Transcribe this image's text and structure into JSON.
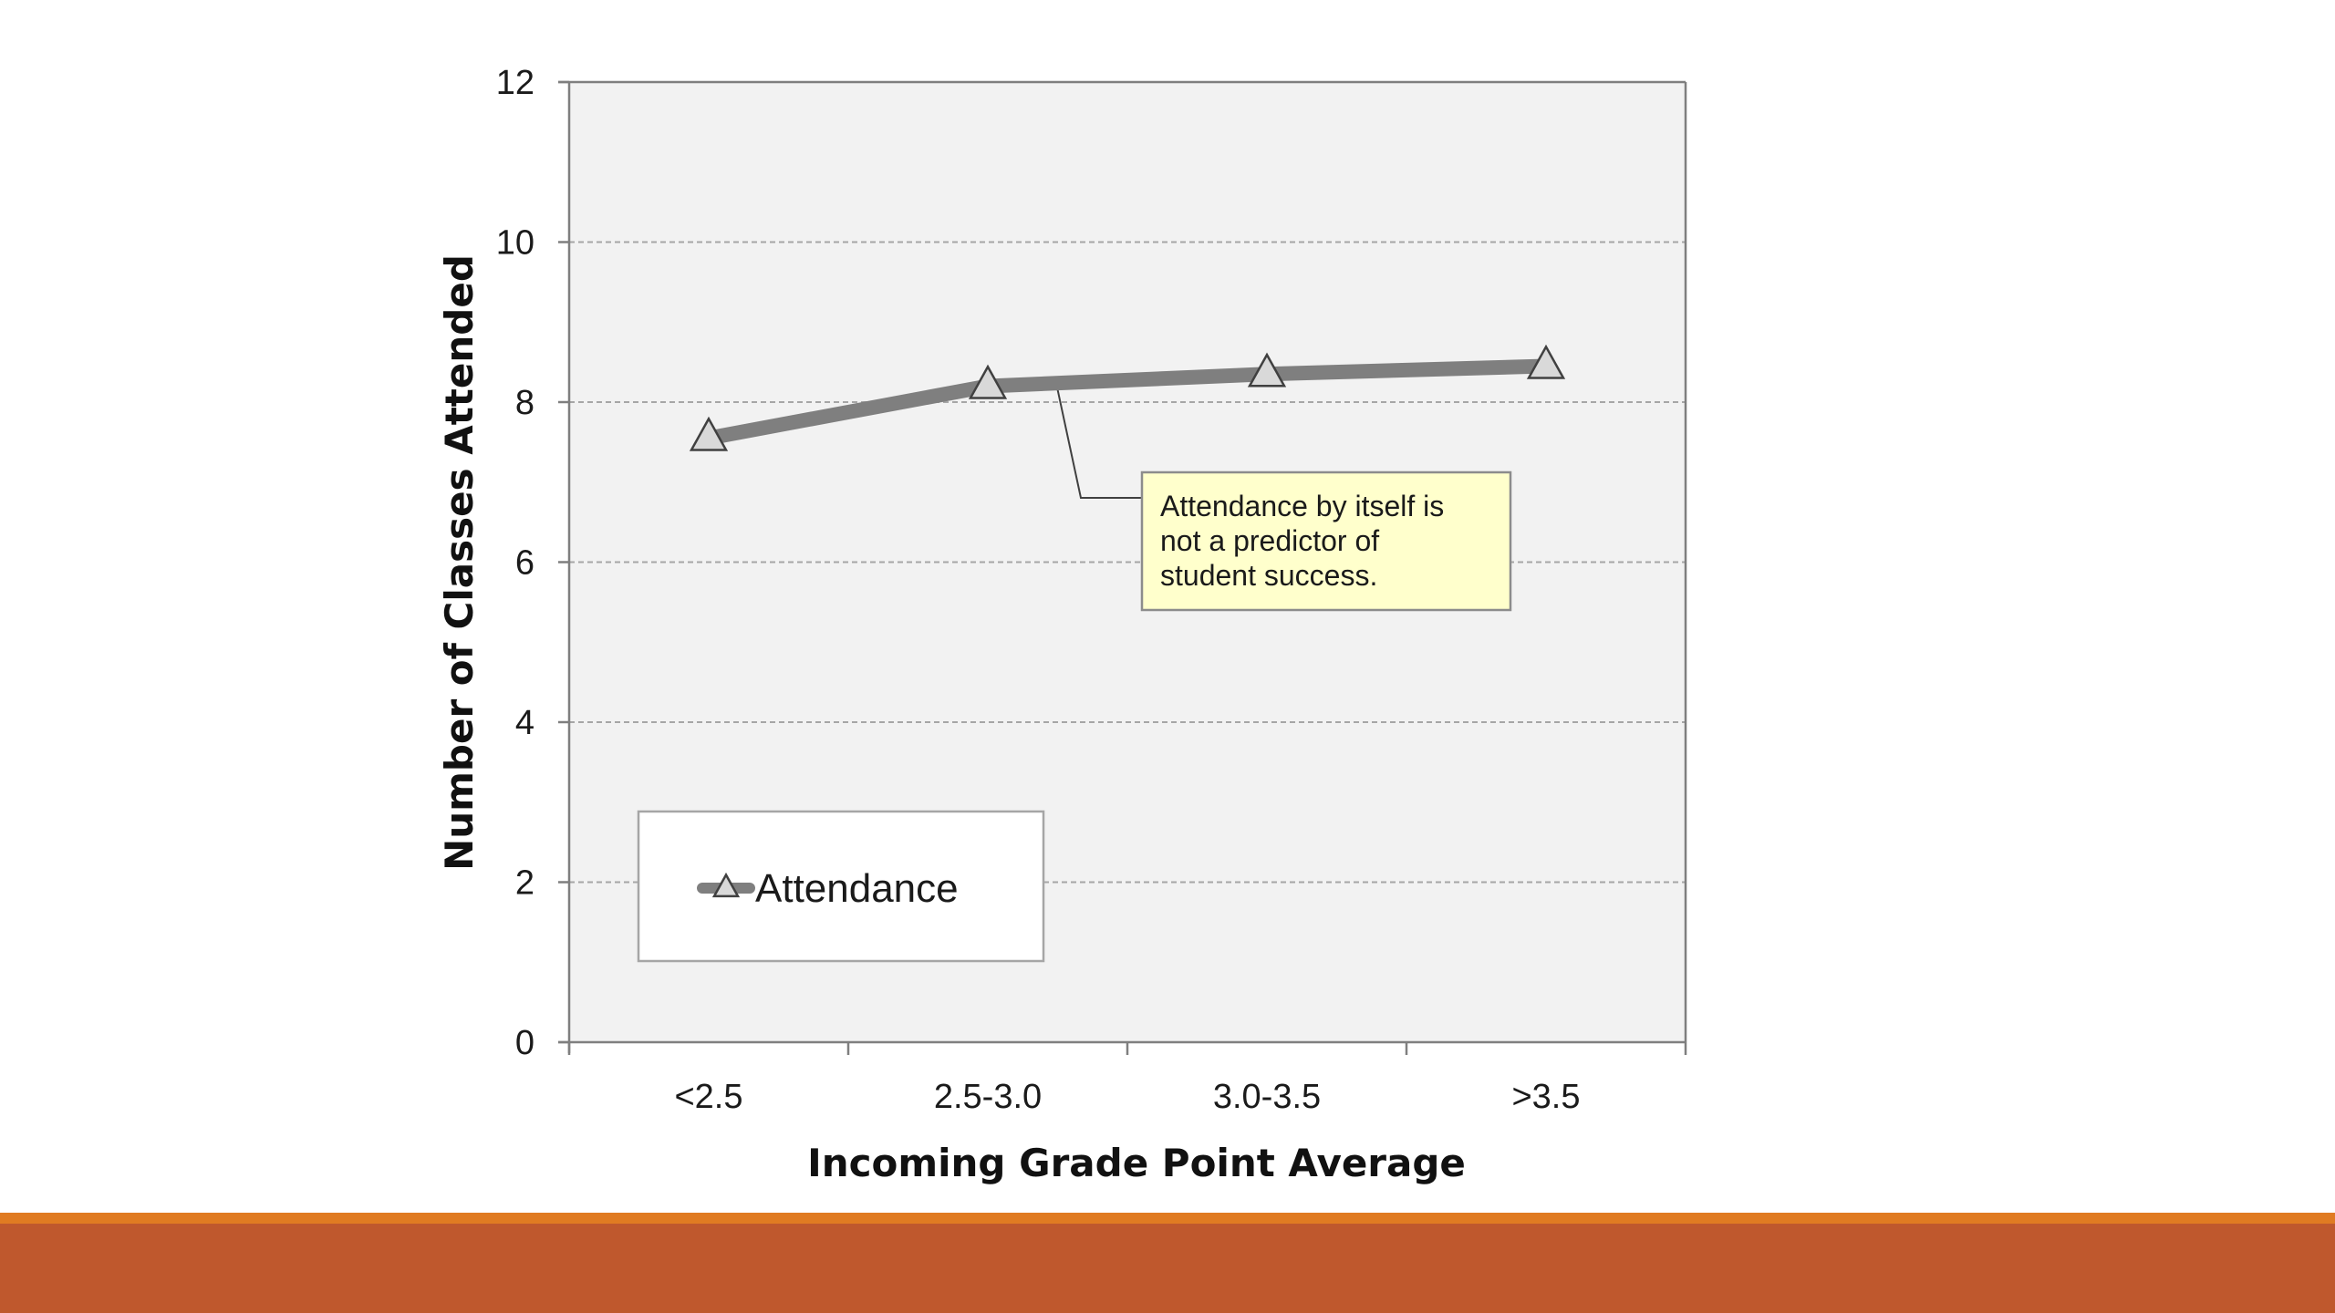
{
  "chart_data": {
    "type": "line",
    "categories": [
      "<2.5",
      "2.5-3.0",
      "3.0-3.5",
      ">3.5"
    ],
    "series": [
      {
        "name": "Attendance",
        "values": [
          7.55,
          8.2,
          8.35,
          8.45
        ],
        "color": "#7f7f7f",
        "marker": "triangle"
      }
    ],
    "title": "",
    "xlabel": "Incoming Grade Point Average",
    "ylabel": "Number of Classes Attended",
    "ylim": [
      0,
      12
    ],
    "yticks": [
      0,
      2,
      4,
      6,
      8,
      10,
      12
    ],
    "grid": true,
    "legend_position": "bottom-left",
    "annotations": [
      {
        "text_lines": [
          "Attendance by itself is",
          "not a predictor of",
          "student success."
        ],
        "points_to_category": "2.5-3.0",
        "background": "#ffffcc"
      }
    ]
  },
  "theme": {
    "plot_background": "#f2f2f2",
    "gridline_color": "#a6a6a6",
    "axis_color": "#7f7f7f",
    "footer_accent": "#e07b22",
    "footer_bar": "#bf582d"
  }
}
